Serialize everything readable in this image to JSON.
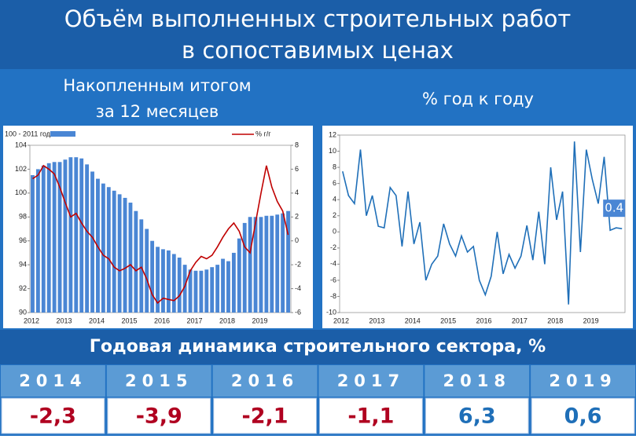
{
  "header": {
    "title": [
      "Объём выполненных строительных работ",
      "в сопоставимых ценах"
    ]
  },
  "panels": {
    "left_subtitle": [
      "Накопленным итогом",
      "за 12 месяцев"
    ],
    "right_subtitle": "% год к году"
  },
  "chart_data": [
    {
      "type": "bar",
      "categories": [
        "2012",
        null,
        null,
        null,
        null,
        null,
        "2013",
        null,
        null,
        null,
        null,
        null,
        "2014",
        null,
        null,
        null,
        null,
        null,
        "2015",
        null,
        null,
        null,
        null,
        null,
        "2016",
        null,
        null,
        null,
        null,
        null,
        "2017",
        null,
        null,
        null,
        null,
        null,
        "2018",
        null,
        null,
        null,
        null,
        null,
        "2019",
        null,
        null,
        null,
        null,
        null
      ],
      "series": [
        {
          "name": "100 - 2011 год",
          "color": "#4a86d4",
          "values": [
            101.5,
            102.0,
            102.3,
            102.5,
            102.6,
            102.6,
            102.8,
            103.0,
            103.0,
            102.9,
            102.4,
            101.8,
            101.2,
            100.8,
            100.5,
            100.2,
            99.9,
            99.6,
            99.2,
            98.5,
            97.8,
            97.0,
            96.0,
            95.5,
            95.3,
            95.2,
            94.9,
            94.6,
            94.0,
            93.6,
            93.5,
            93.5,
            93.6,
            93.8,
            94.0,
            94.5,
            94.3,
            95.0,
            96.2,
            97.5,
            98.0,
            98.0,
            98.0,
            98.1,
            98.1,
            98.2,
            98.3,
            98.5
          ]
        },
        {
          "name": "% г/г",
          "type": "line",
          "axis": "y2",
          "color": "#c00000",
          "values": [
            5.2,
            5.5,
            6.3,
            6.0,
            5.6,
            4.5,
            3.2,
            2.0,
            2.3,
            1.5,
            0.8,
            0.3,
            -0.5,
            -1.2,
            -1.5,
            -2.2,
            -2.5,
            -2.3,
            -2.0,
            -2.5,
            -2.2,
            -3.2,
            -4.5,
            -5.2,
            -4.8,
            -4.9,
            -5.0,
            -4.6,
            -3.8,
            -2.5,
            -1.8,
            -1.3,
            -1.5,
            -1.2,
            -0.5,
            0.3,
            1.0,
            1.5,
            0.8,
            -0.5,
            -1.0,
            1.5,
            4.0,
            6.3,
            4.5,
            3.3,
            2.5,
            0.5
          ]
        }
      ],
      "ylim": [
        90,
        104
      ],
      "yticks": [
        90,
        92,
        94,
        96,
        98,
        100,
        102,
        104
      ],
      "y2lim": [
        -6,
        8
      ],
      "y2ticks": [
        -6,
        -4,
        -2,
        0,
        2,
        4,
        6,
        8
      ],
      "legend": "top",
      "grid": false
    },
    {
      "type": "line",
      "categories": [
        "2012",
        null,
        null,
        null,
        null,
        null,
        "2013",
        null,
        null,
        null,
        null,
        null,
        "2014",
        null,
        null,
        null,
        null,
        null,
        "2015",
        null,
        null,
        null,
        null,
        null,
        "2016",
        null,
        null,
        null,
        null,
        null,
        "2017",
        null,
        null,
        null,
        null,
        null,
        "2018",
        null,
        null,
        null,
        null,
        null,
        "2019",
        null,
        null,
        null,
        null,
        null
      ],
      "series": [
        {
          "color": "#1f6fb8",
          "values": [
            7.5,
            4.5,
            3.5,
            10.2,
            2.0,
            4.5,
            0.7,
            0.5,
            5.5,
            4.5,
            -1.8,
            5.0,
            -1.5,
            1.2,
            -6.0,
            -4.0,
            -3.0,
            1.0,
            -1.5,
            -3.0,
            -0.5,
            -2.5,
            -1.8,
            -6.0,
            -7.8,
            -5.5,
            0,
            -5.2,
            -2.8,
            -4.5,
            -3.0,
            0.8,
            -3.5,
            2.5,
            -4.0,
            8.0,
            1.5,
            5.0,
            -9.0,
            11.2,
            -2.5,
            10.2,
            6.5,
            3.5,
            9.3,
            0.2,
            0.5,
            0.4
          ]
        }
      ],
      "ylim": [
        -10,
        12
      ],
      "yticks": [
        -10,
        -8,
        -6,
        -4,
        -2,
        0,
        2,
        4,
        6,
        8,
        10,
        12
      ],
      "annotations": [
        "0.4"
      ],
      "grid": false
    }
  ],
  "table": {
    "title": "Годовая динамика строительного сектора, %",
    "columns": [
      "2014",
      "2015",
      "2016",
      "2017",
      "2018",
      "2019"
    ],
    "rows": [
      [
        "-2,3",
        "-3,9",
        "-2,1",
        "-1,1",
        "6,3",
        "0,6"
      ]
    ]
  }
}
